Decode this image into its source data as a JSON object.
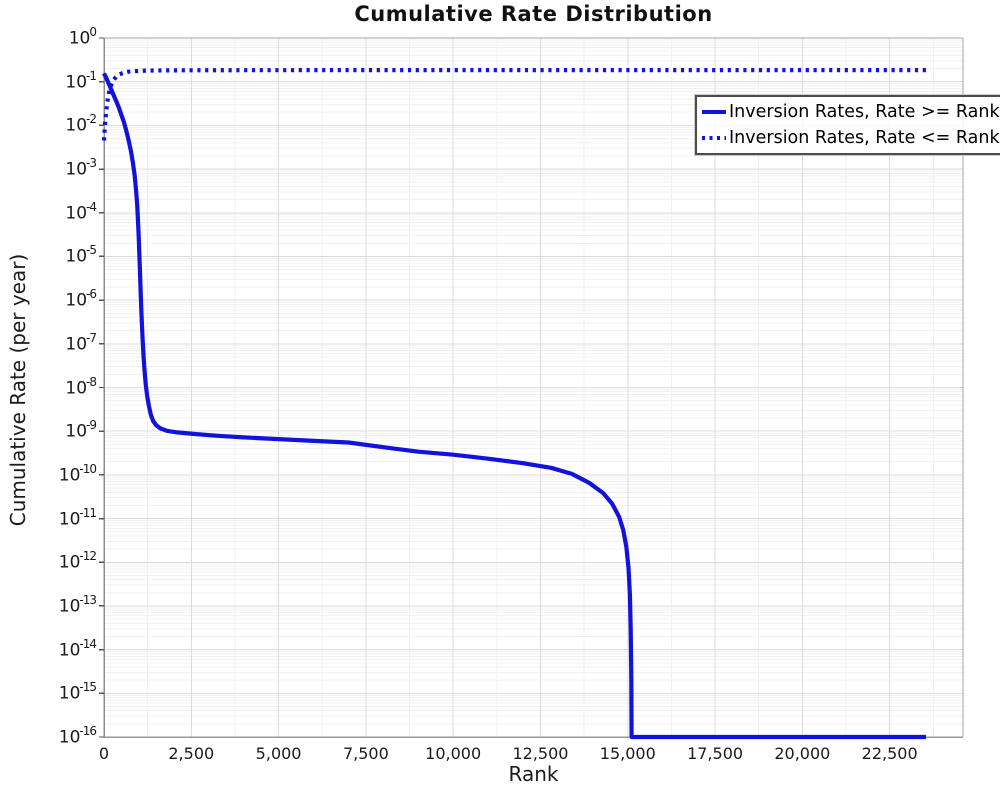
{
  "chart_data": {
    "type": "line",
    "title": "Cumulative Rate Distribution",
    "xlabel": "Rank",
    "ylabel": "Cumulative Rate (per year)",
    "x_range": [
      0,
      24600
    ],
    "y_exponent_range": [
      0,
      -16
    ],
    "y_scale": "log",
    "grid": true,
    "legend_position": "top-right",
    "colors": {
      "line_blue": "#1212dd",
      "grid_major": "#dcdcdc",
      "grid_minor": "#f1f1f1",
      "spine": "#a6a6a6",
      "tick_mark": "#555555",
      "text": "#1a1a1a"
    },
    "x_major_ticks": [
      {
        "v": 0,
        "label": "0"
      },
      {
        "v": 2500,
        "label": "2,500"
      },
      {
        "v": 5000,
        "label": "5,000"
      },
      {
        "v": 7500,
        "label": "7,500"
      },
      {
        "v": 10000,
        "label": "10,000"
      },
      {
        "v": 12500,
        "label": "12,500"
      },
      {
        "v": 15000,
        "label": "15,000"
      },
      {
        "v": 17500,
        "label": "17,500"
      },
      {
        "v": 20000,
        "label": "20,000"
      },
      {
        "v": 22500,
        "label": "22,500"
      }
    ],
    "x_minor_step": 1250,
    "y_major_tick_exponents": [
      0,
      -1,
      -2,
      -3,
      -4,
      -5,
      -6,
      -7,
      -8,
      -9,
      -10,
      -11,
      -12,
      -13,
      -14,
      -15,
      -16
    ],
    "series": [
      {
        "name": "Inversion Rates, Rate >= Rank",
        "style": "solid",
        "points": [
          [
            0,
            0.155
          ],
          [
            25,
            0.14
          ],
          [
            60,
            0.125
          ],
          [
            100,
            0.105
          ],
          [
            150,
            0.085
          ],
          [
            210,
            0.066
          ],
          [
            280,
            0.048
          ],
          [
            350,
            0.036
          ],
          [
            420,
            0.026
          ],
          [
            490,
            0.018
          ],
          [
            560,
            0.0125
          ],
          [
            630,
            0.008
          ],
          [
            700,
            0.0048
          ],
          [
            770,
            0.0026
          ],
          [
            830,
            0.00135
          ],
          [
            880,
            0.0007
          ],
          [
            920,
            0.00032
          ],
          [
            950,
            0.00015
          ],
          [
            975,
            6.5e-05
          ],
          [
            995,
            2.8e-05
          ],
          [
            1012,
            1.2e-05
          ],
          [
            1028,
            5e-06
          ],
          [
            1045,
            2e-06
          ],
          [
            1062,
            8e-07
          ],
          [
            1082,
            3.2e-07
          ],
          [
            1105,
            1.3e-07
          ],
          [
            1130,
            5.5e-08
          ],
          [
            1160,
            2.5e-08
          ],
          [
            1195,
            1.2e-08
          ],
          [
            1235,
            6.5e-09
          ],
          [
            1285,
            3.8e-09
          ],
          [
            1340,
            2.4e-09
          ],
          [
            1410,
            1.7e-09
          ],
          [
            1500,
            1.35e-09
          ],
          [
            1620,
            1.15e-09
          ],
          [
            1800,
            1.02e-09
          ],
          [
            2100,
            9.4e-10
          ],
          [
            2600,
            8.6e-10
          ],
          [
            3200,
            7.9e-10
          ],
          [
            4000,
            7.2e-10
          ],
          [
            5000,
            6.6e-10
          ],
          [
            6000,
            6e-10
          ],
          [
            7000,
            5.5e-10
          ],
          [
            8000,
            4.3e-10
          ],
          [
            9000,
            3.4e-10
          ],
          [
            10000,
            2.9e-10
          ],
          [
            11000,
            2.35e-10
          ],
          [
            12000,
            1.85e-10
          ],
          [
            12800,
            1.45e-10
          ],
          [
            13400,
            1.05e-10
          ],
          [
            13900,
            6.5e-11
          ],
          [
            14300,
            3.8e-11
          ],
          [
            14550,
            2.2e-11
          ],
          [
            14750,
            1.1e-11
          ],
          [
            14870,
            5.5e-12
          ],
          [
            14960,
            2.2e-12
          ],
          [
            15020,
            7.5e-13
          ],
          [
            15060,
            1.8e-13
          ],
          [
            15085,
            3e-14
          ],
          [
            15100,
            2.5e-15
          ],
          [
            15108,
            1e-16
          ],
          [
            23540,
            1e-16
          ]
        ]
      },
      {
        "name": "Inversion Rates, Rate <= Rank",
        "style": "dotted",
        "points": [
          [
            0,
            0.0045
          ],
          [
            15,
            0.007
          ],
          [
            35,
            0.012
          ],
          [
            60,
            0.02
          ],
          [
            95,
            0.034
          ],
          [
            140,
            0.055
          ],
          [
            200,
            0.082
          ],
          [
            270,
            0.108
          ],
          [
            350,
            0.13
          ],
          [
            450,
            0.148
          ],
          [
            560,
            0.16
          ],
          [
            700,
            0.169
          ],
          [
            900,
            0.175
          ],
          [
            1200,
            0.179
          ],
          [
            1700,
            0.181
          ],
          [
            2500,
            0.182
          ],
          [
            4000,
            0.183
          ],
          [
            8000,
            0.184
          ],
          [
            15000,
            0.184
          ],
          [
            23540,
            0.184
          ]
        ]
      }
    ]
  }
}
